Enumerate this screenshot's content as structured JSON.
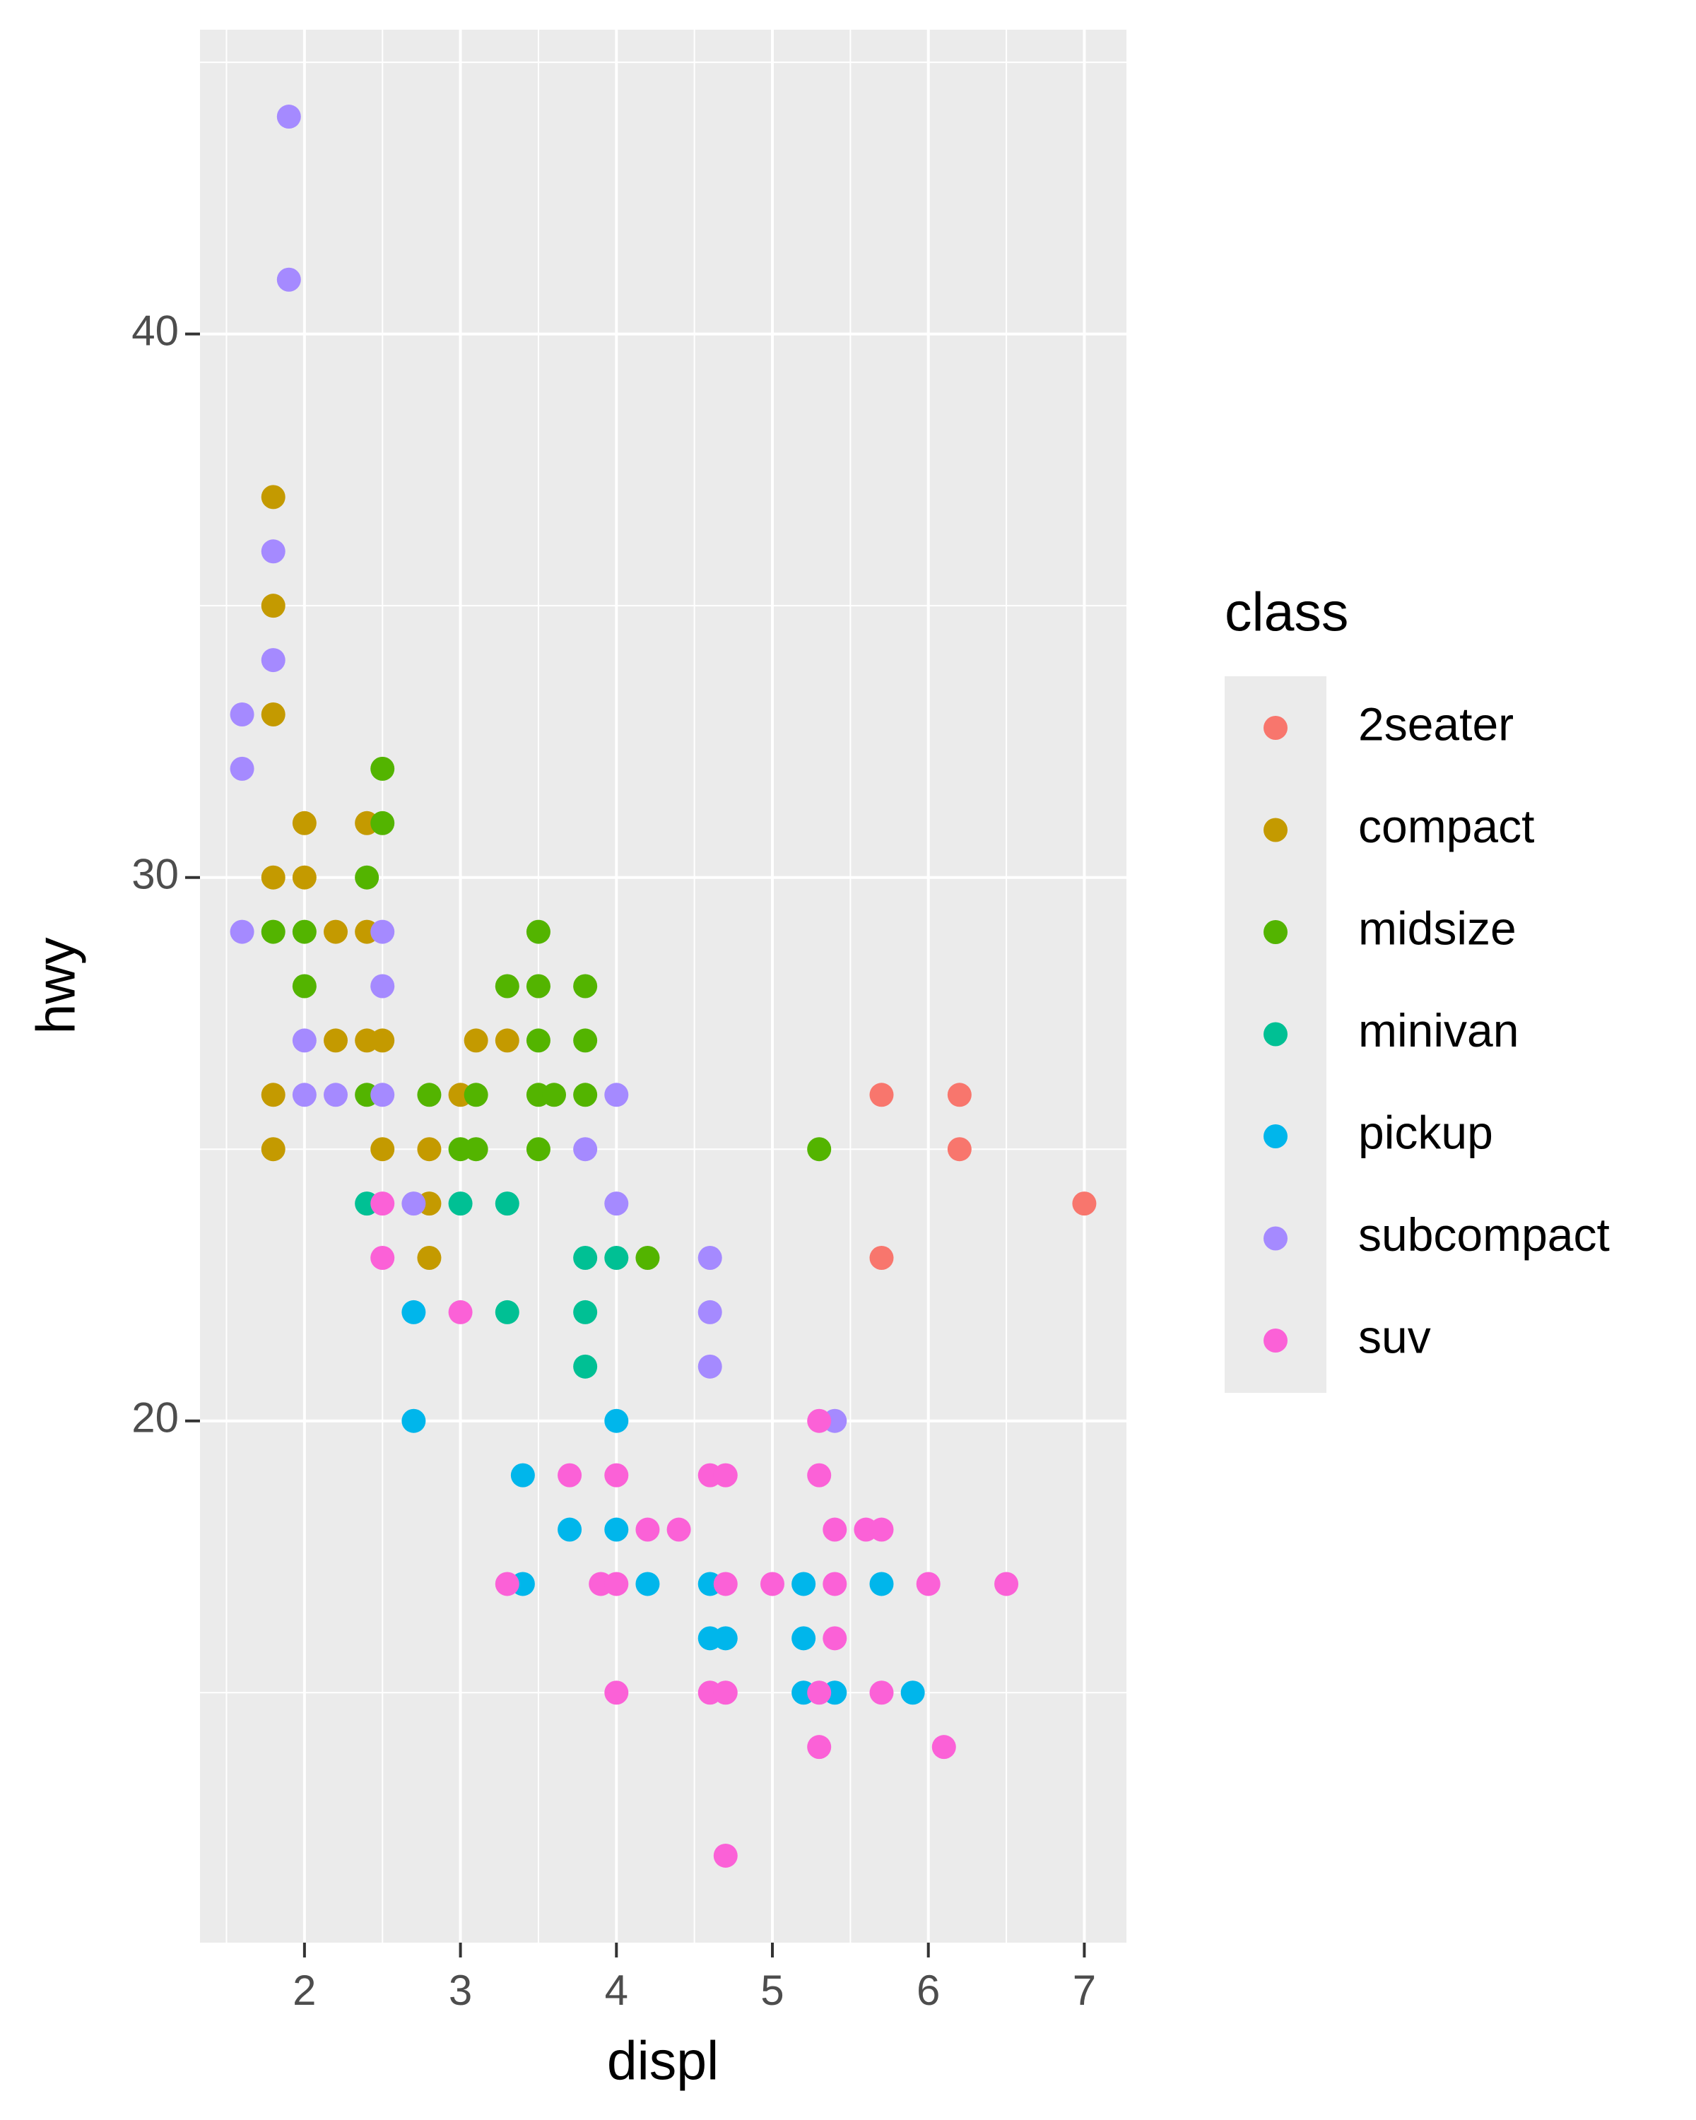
{
  "chart_data": {
    "type": "scatter",
    "x_label": "displ",
    "y_label": "hwy",
    "legend_title": "class",
    "xlim": [
      1.33,
      7.27
    ],
    "ylim": [
      10.4,
      45.6
    ],
    "xticks": [
      2,
      3,
      4,
      5,
      6,
      7
    ],
    "yticks": [
      20,
      30,
      40
    ],
    "xminor": [
      1.5,
      2.5,
      3.5,
      4.5,
      5.5,
      6.5
    ],
    "yminor": [
      15,
      25,
      35,
      45
    ],
    "grid": true,
    "legend": "right",
    "series": [
      {
        "name": "2seater",
        "color": "#F8766D",
        "x": [
          5.7,
          6.2,
          6.2,
          7.0,
          5.7
        ],
        "values": [
          26,
          26,
          25,
          24,
          23
        ]
      },
      {
        "name": "compact",
        "color": "#C49A00",
        "x": [
          1.8,
          1.8,
          1.8,
          2.4,
          2.0,
          1.8,
          2.0,
          2.4,
          2.2,
          2.4,
          2.2,
          2.5,
          3.1,
          3.3,
          1.8,
          3.0,
          2.8,
          1.8,
          2.5,
          2.8,
          2.8
        ],
        "values": [
          37,
          35,
          33,
          31,
          31,
          30,
          30,
          29,
          29,
          27,
          27,
          27,
          27,
          27,
          26,
          26,
          25,
          25,
          25,
          24,
          23
        ]
      },
      {
        "name": "midsize",
        "color": "#53B400",
        "x": [
          2.5,
          2.5,
          2.4,
          1.8,
          2.0,
          3.5,
          2.0,
          3.3,
          3.5,
          3.8,
          3.1,
          3.5,
          3.8,
          2.4,
          2.8,
          3.5,
          3.6,
          3.8,
          3.0,
          3.1,
          3.5,
          5.3,
          4.2
        ],
        "values": [
          32,
          31,
          30,
          29,
          29,
          29,
          28,
          28,
          28,
          28,
          26,
          27,
          27,
          26,
          26,
          26,
          26,
          26,
          25,
          25,
          25,
          25,
          23
        ]
      },
      {
        "name": "minivan",
        "color": "#00C094",
        "x": [
          2.4,
          3.0,
          3.3,
          3.8,
          4.0,
          3.3,
          3.8,
          3.8
        ],
        "values": [
          24,
          24,
          24,
          23,
          23,
          22,
          22,
          21
        ]
      },
      {
        "name": "pickup",
        "color": "#00B6EB",
        "x": [
          2.7,
          2.7,
          4.0,
          3.4,
          3.7,
          4.0,
          3.4,
          4.2,
          4.6,
          5.2,
          5.7,
          4.6,
          4.7,
          5.2,
          5.2,
          5.4,
          5.9
        ],
        "values": [
          22,
          20,
          20,
          19,
          18,
          18,
          17,
          17,
          17,
          17,
          17,
          16,
          16,
          16,
          15,
          15,
          15
        ]
      },
      {
        "name": "subcompact",
        "color": "#A58AFF",
        "x": [
          1.9,
          1.9,
          1.8,
          1.8,
          1.6,
          1.6,
          1.6,
          2.5,
          2.5,
          2.0,
          2.0,
          2.2,
          2.5,
          4.0,
          3.8,
          2.7,
          4.0,
          4.6,
          4.6,
          4.6,
          5.4
        ],
        "values": [
          44,
          41,
          36,
          34,
          33,
          32,
          29,
          29,
          28,
          27,
          26,
          26,
          26,
          26,
          25,
          24,
          24,
          23,
          22,
          21,
          20
        ]
      },
      {
        "name": "suv",
        "color": "#FB61D7",
        "x": [
          2.5,
          2.5,
          3.0,
          5.3,
          3.7,
          4.0,
          4.6,
          4.7,
          5.3,
          4.2,
          4.4,
          5.4,
          5.6,
          5.7,
          3.3,
          3.9,
          4.0,
          4.7,
          5.0,
          5.4,
          6.0,
          6.5,
          5.4,
          4.0,
          4.6,
          4.7,
          5.3,
          5.7,
          5.3,
          6.1,
          4.7
        ],
        "values": [
          24,
          23,
          22,
          20,
          19,
          19,
          19,
          19,
          19,
          18,
          18,
          18,
          18,
          18,
          17,
          17,
          17,
          17,
          17,
          17,
          17,
          17,
          16,
          15,
          15,
          15,
          15,
          15,
          14,
          14,
          12
        ]
      }
    ]
  }
}
